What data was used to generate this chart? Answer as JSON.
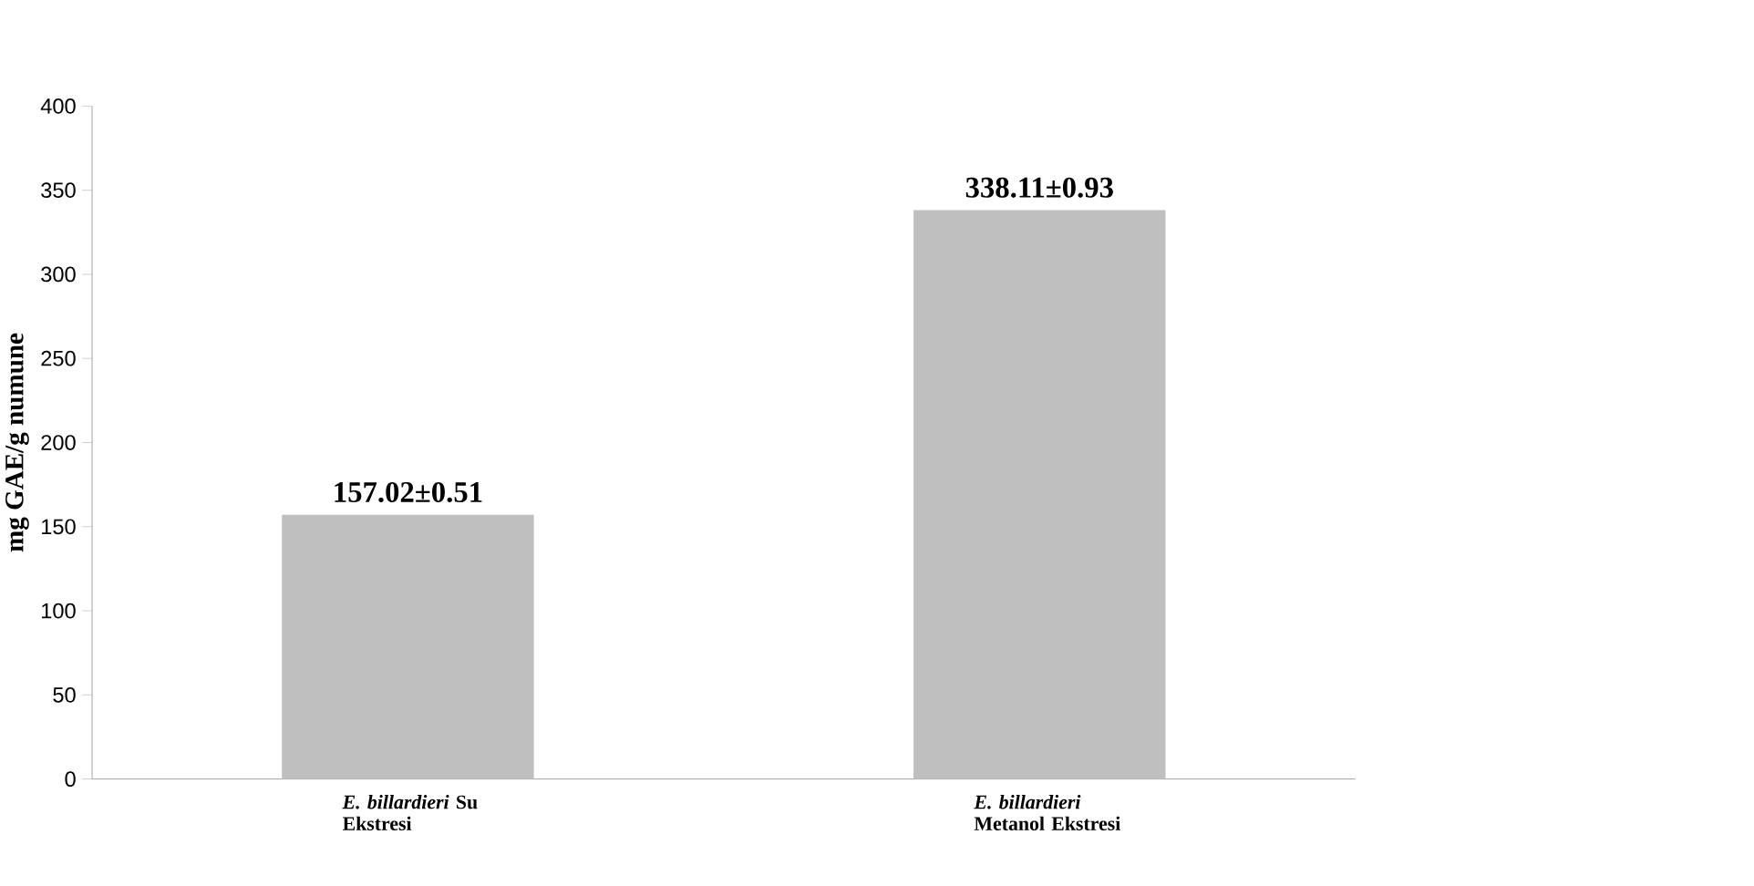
{
  "chart_data": {
    "type": "bar",
    "categories": [
      "*E. billardieri* Su Ekstresi",
      "*E. billardieri* Metanol Ekstresi"
    ],
    "values": [
      157.02,
      338.11
    ],
    "value_labels": [
      "157.02±0.51",
      "338.11±0.93"
    ],
    "color": "#bfbfbf",
    "ylabel": "mg GAE/g numune",
    "ylim": [
      0,
      400
    ],
    "yticks": [
      0,
      50,
      100,
      150,
      200,
      250,
      300,
      350,
      400
    ]
  }
}
